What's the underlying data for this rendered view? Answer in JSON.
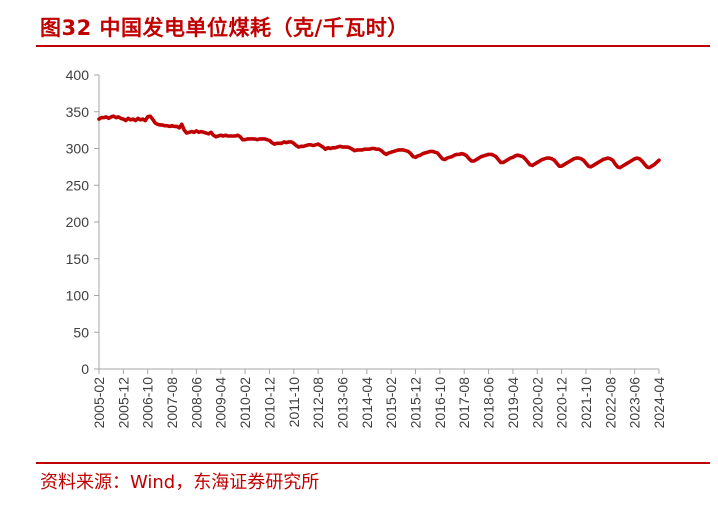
{
  "figure": {
    "title": "图32  中国发电单位煤耗（克/千瓦时）",
    "source": "资料来源：Wind，东海证券研究所"
  },
  "colors": {
    "accent": "#c00000",
    "series": "#c00000",
    "axis": "#a6a6a6",
    "text": "#404040"
  },
  "chart_data": {
    "type": "line",
    "title": "",
    "xlabel": "",
    "ylabel": "",
    "ylim": [
      0,
      400
    ],
    "yticks": [
      0,
      50,
      100,
      150,
      200,
      250,
      300,
      350,
      400
    ],
    "grid": false,
    "legend": "none",
    "x_start": "2005-02",
    "x_end": "2024-04",
    "x_tick_labels": [
      "2005-02",
      "2005-12",
      "2006-10",
      "2007-08",
      "2008-06",
      "2009-04",
      "2010-02",
      "2010-12",
      "2011-10",
      "2012-08",
      "2013-06",
      "2014-04",
      "2015-02",
      "2015-12",
      "2016-10",
      "2017-08",
      "2018-06",
      "2019-04",
      "2020-02",
      "2020-12",
      "2021-10",
      "2022-08",
      "2023-06",
      "2024-04"
    ],
    "points": [
      [
        "2005-02",
        340
      ],
      [
        "2005-03",
        342
      ],
      [
        "2005-04",
        342
      ],
      [
        "2005-05",
        343
      ],
      [
        "2005-06",
        341
      ],
      [
        "2005-07",
        343
      ],
      [
        "2005-08",
        344
      ],
      [
        "2005-09",
        342
      ],
      [
        "2005-10",
        343
      ],
      [
        "2005-11",
        341
      ],
      [
        "2005-12",
        340
      ],
      [
        "2006-01",
        338
      ],
      [
        "2006-02",
        341
      ],
      [
        "2006-03",
        339
      ],
      [
        "2006-04",
        340
      ],
      [
        "2006-05",
        338
      ],
      [
        "2006-06",
        341
      ],
      [
        "2006-07",
        339
      ],
      [
        "2006-08",
        340
      ],
      [
        "2006-09",
        338
      ],
      [
        "2006-10",
        343
      ],
      [
        "2006-11",
        344
      ],
      [
        "2006-12",
        340
      ],
      [
        "2007-01",
        335
      ],
      [
        "2007-02",
        333
      ],
      [
        "2007-03",
        332
      ],
      [
        "2007-04",
        332
      ],
      [
        "2007-05",
        331
      ],
      [
        "2007-06",
        331
      ],
      [
        "2007-07",
        330
      ],
      [
        "2007-08",
        331
      ],
      [
        "2007-09",
        330
      ],
      [
        "2007-10",
        330
      ],
      [
        "2007-11",
        328
      ],
      [
        "2007-12",
        333
      ],
      [
        "2008-01",
        325
      ],
      [
        "2008-02",
        321
      ],
      [
        "2008-03",
        322
      ],
      [
        "2008-04",
        323
      ],
      [
        "2008-05",
        322
      ],
      [
        "2008-06",
        324
      ],
      [
        "2008-07",
        322
      ],
      [
        "2008-08",
        323
      ],
      [
        "2008-09",
        322
      ],
      [
        "2008-10",
        321
      ],
      [
        "2008-11",
        320
      ],
      [
        "2008-12",
        322
      ],
      [
        "2009-01",
        318
      ],
      [
        "2009-02",
        316
      ],
      [
        "2009-03",
        317
      ],
      [
        "2009-04",
        318
      ],
      [
        "2009-05",
        317
      ],
      [
        "2009-06",
        318
      ],
      [
        "2009-07",
        317
      ],
      [
        "2009-08",
        317
      ],
      [
        "2009-09",
        317
      ],
      [
        "2009-10",
        317
      ],
      [
        "2009-11",
        318
      ],
      [
        "2009-12",
        316
      ],
      [
        "2010-01",
        312
      ],
      [
        "2010-02",
        312
      ],
      [
        "2010-03",
        313
      ],
      [
        "2010-04",
        313
      ],
      [
        "2010-05",
        313
      ],
      [
        "2010-06",
        313
      ],
      [
        "2010-07",
        312
      ],
      [
        "2010-08",
        313
      ],
      [
        "2010-09",
        313
      ],
      [
        "2010-10",
        313
      ],
      [
        "2010-11",
        312
      ],
      [
        "2010-12",
        311
      ],
      [
        "2011-01",
        308
      ],
      [
        "2011-02",
        306
      ],
      [
        "2011-03",
        307
      ],
      [
        "2011-04",
        307
      ],
      [
        "2011-05",
        307
      ],
      [
        "2011-06",
        309
      ],
      [
        "2011-07",
        308
      ],
      [
        "2011-08",
        309
      ],
      [
        "2011-09",
        309
      ],
      [
        "2011-10",
        307
      ],
      [
        "2011-11",
        304
      ],
      [
        "2011-12",
        302
      ],
      [
        "2012-01",
        303
      ],
      [
        "2012-02",
        303
      ],
      [
        "2012-03",
        304
      ],
      [
        "2012-04",
        305
      ],
      [
        "2012-05",
        305
      ],
      [
        "2012-06",
        304
      ],
      [
        "2012-07",
        305
      ],
      [
        "2012-08",
        306
      ],
      [
        "2012-09",
        304
      ],
      [
        "2012-10",
        302
      ],
      [
        "2012-11",
        299
      ],
      [
        "2012-12",
        301
      ],
      [
        "2013-01",
        300
      ],
      [
        "2013-02",
        301
      ],
      [
        "2013-03",
        301
      ],
      [
        "2013-04",
        302
      ],
      [
        "2013-05",
        303
      ],
      [
        "2013-06",
        302
      ],
      [
        "2013-07",
        302
      ],
      [
        "2013-08",
        302
      ],
      [
        "2013-09",
        301
      ],
      [
        "2013-10",
        299
      ],
      [
        "2013-11",
        297
      ],
      [
        "2013-12",
        298
      ],
      [
        "2014-01",
        298
      ],
      [
        "2014-02",
        298
      ],
      [
        "2014-03",
        299
      ],
      [
        "2014-04",
        299
      ],
      [
        "2014-05",
        299
      ],
      [
        "2014-06",
        300
      ],
      [
        "2014-07",
        300
      ],
      [
        "2014-08",
        299
      ],
      [
        "2014-09",
        299
      ],
      [
        "2014-10",
        297
      ],
      [
        "2014-11",
        294
      ],
      [
        "2014-12",
        292
      ],
      [
        "2015-01",
        294
      ],
      [
        "2015-02",
        295
      ],
      [
        "2015-03",
        296
      ],
      [
        "2015-04",
        297
      ],
      [
        "2015-05",
        298
      ],
      [
        "2015-06",
        298
      ],
      [
        "2015-07",
        298
      ],
      [
        "2015-08",
        297
      ],
      [
        "2015-09",
        296
      ],
      [
        "2015-10",
        293
      ],
      [
        "2015-11",
        289
      ],
      [
        "2015-12",
        288
      ],
      [
        "2016-01",
        290
      ],
      [
        "2016-02",
        291
      ],
      [
        "2016-03",
        293
      ],
      [
        "2016-04",
        294
      ],
      [
        "2016-05",
        295
      ],
      [
        "2016-06",
        296
      ],
      [
        "2016-07",
        296
      ],
      [
        "2016-08",
        295
      ],
      [
        "2016-09",
        294
      ],
      [
        "2016-10",
        290
      ],
      [
        "2016-11",
        286
      ],
      [
        "2016-12",
        285
      ],
      [
        "2017-01",
        287
      ],
      [
        "2017-02",
        288
      ],
      [
        "2017-03",
        289
      ],
      [
        "2017-04",
        291
      ],
      [
        "2017-05",
        292
      ],
      [
        "2017-06",
        292
      ],
      [
        "2017-07",
        293
      ],
      [
        "2017-08",
        292
      ],
      [
        "2017-09",
        290
      ],
      [
        "2017-10",
        286
      ],
      [
        "2017-11",
        283
      ],
      [
        "2017-12",
        283
      ],
      [
        "2018-01",
        285
      ],
      [
        "2018-02",
        287
      ],
      [
        "2018-03",
        289
      ],
      [
        "2018-04",
        290
      ],
      [
        "2018-05",
        291
      ],
      [
        "2018-06",
        292
      ],
      [
        "2018-07",
        292
      ],
      [
        "2018-08",
        291
      ],
      [
        "2018-09",
        289
      ],
      [
        "2018-10",
        285
      ],
      [
        "2018-11",
        281
      ],
      [
        "2018-12",
        281
      ],
      [
        "2019-01",
        283
      ],
      [
        "2019-02",
        285
      ],
      [
        "2019-03",
        287
      ],
      [
        "2019-04",
        288
      ],
      [
        "2019-05",
        290
      ],
      [
        "2019-06",
        291
      ],
      [
        "2019-07",
        290
      ],
      [
        "2019-08",
        289
      ],
      [
        "2019-09",
        286
      ],
      [
        "2019-10",
        282
      ],
      [
        "2019-11",
        278
      ],
      [
        "2019-12",
        277
      ],
      [
        "2020-01",
        279
      ],
      [
        "2020-02",
        281
      ],
      [
        "2020-03",
        283
      ],
      [
        "2020-04",
        285
      ],
      [
        "2020-05",
        286
      ],
      [
        "2020-06",
        287
      ],
      [
        "2020-07",
        287
      ],
      [
        "2020-08",
        286
      ],
      [
        "2020-09",
        284
      ],
      [
        "2020-10",
        280
      ],
      [
        "2020-11",
        276
      ],
      [
        "2020-12",
        276
      ],
      [
        "2021-01",
        278
      ],
      [
        "2021-02",
        280
      ],
      [
        "2021-03",
        282
      ],
      [
        "2021-04",
        284
      ],
      [
        "2021-05",
        286
      ],
      [
        "2021-06",
        287
      ],
      [
        "2021-07",
        287
      ],
      [
        "2021-08",
        286
      ],
      [
        "2021-09",
        284
      ],
      [
        "2021-10",
        280
      ],
      [
        "2021-11",
        276
      ],
      [
        "2021-12",
        275
      ],
      [
        "2022-01",
        277
      ],
      [
        "2022-02",
        279
      ],
      [
        "2022-03",
        281
      ],
      [
        "2022-04",
        283
      ],
      [
        "2022-05",
        285
      ],
      [
        "2022-06",
        286
      ],
      [
        "2022-07",
        287
      ],
      [
        "2022-08",
        286
      ],
      [
        "2022-09",
        284
      ],
      [
        "2022-10",
        279
      ],
      [
        "2022-11",
        275
      ],
      [
        "2022-12",
        274
      ],
      [
        "2023-01",
        276
      ],
      [
        "2023-02",
        278
      ],
      [
        "2023-03",
        280
      ],
      [
        "2023-04",
        282
      ],
      [
        "2023-05",
        284
      ],
      [
        "2023-06",
        286
      ],
      [
        "2023-07",
        287
      ],
      [
        "2023-08",
        286
      ],
      [
        "2023-09",
        283
      ],
      [
        "2023-10",
        279
      ],
      [
        "2023-11",
        275
      ],
      [
        "2023-12",
        274
      ],
      [
        "2024-01",
        276
      ],
      [
        "2024-02",
        278
      ],
      [
        "2024-03",
        281
      ],
      [
        "2024-04",
        284
      ]
    ]
  }
}
